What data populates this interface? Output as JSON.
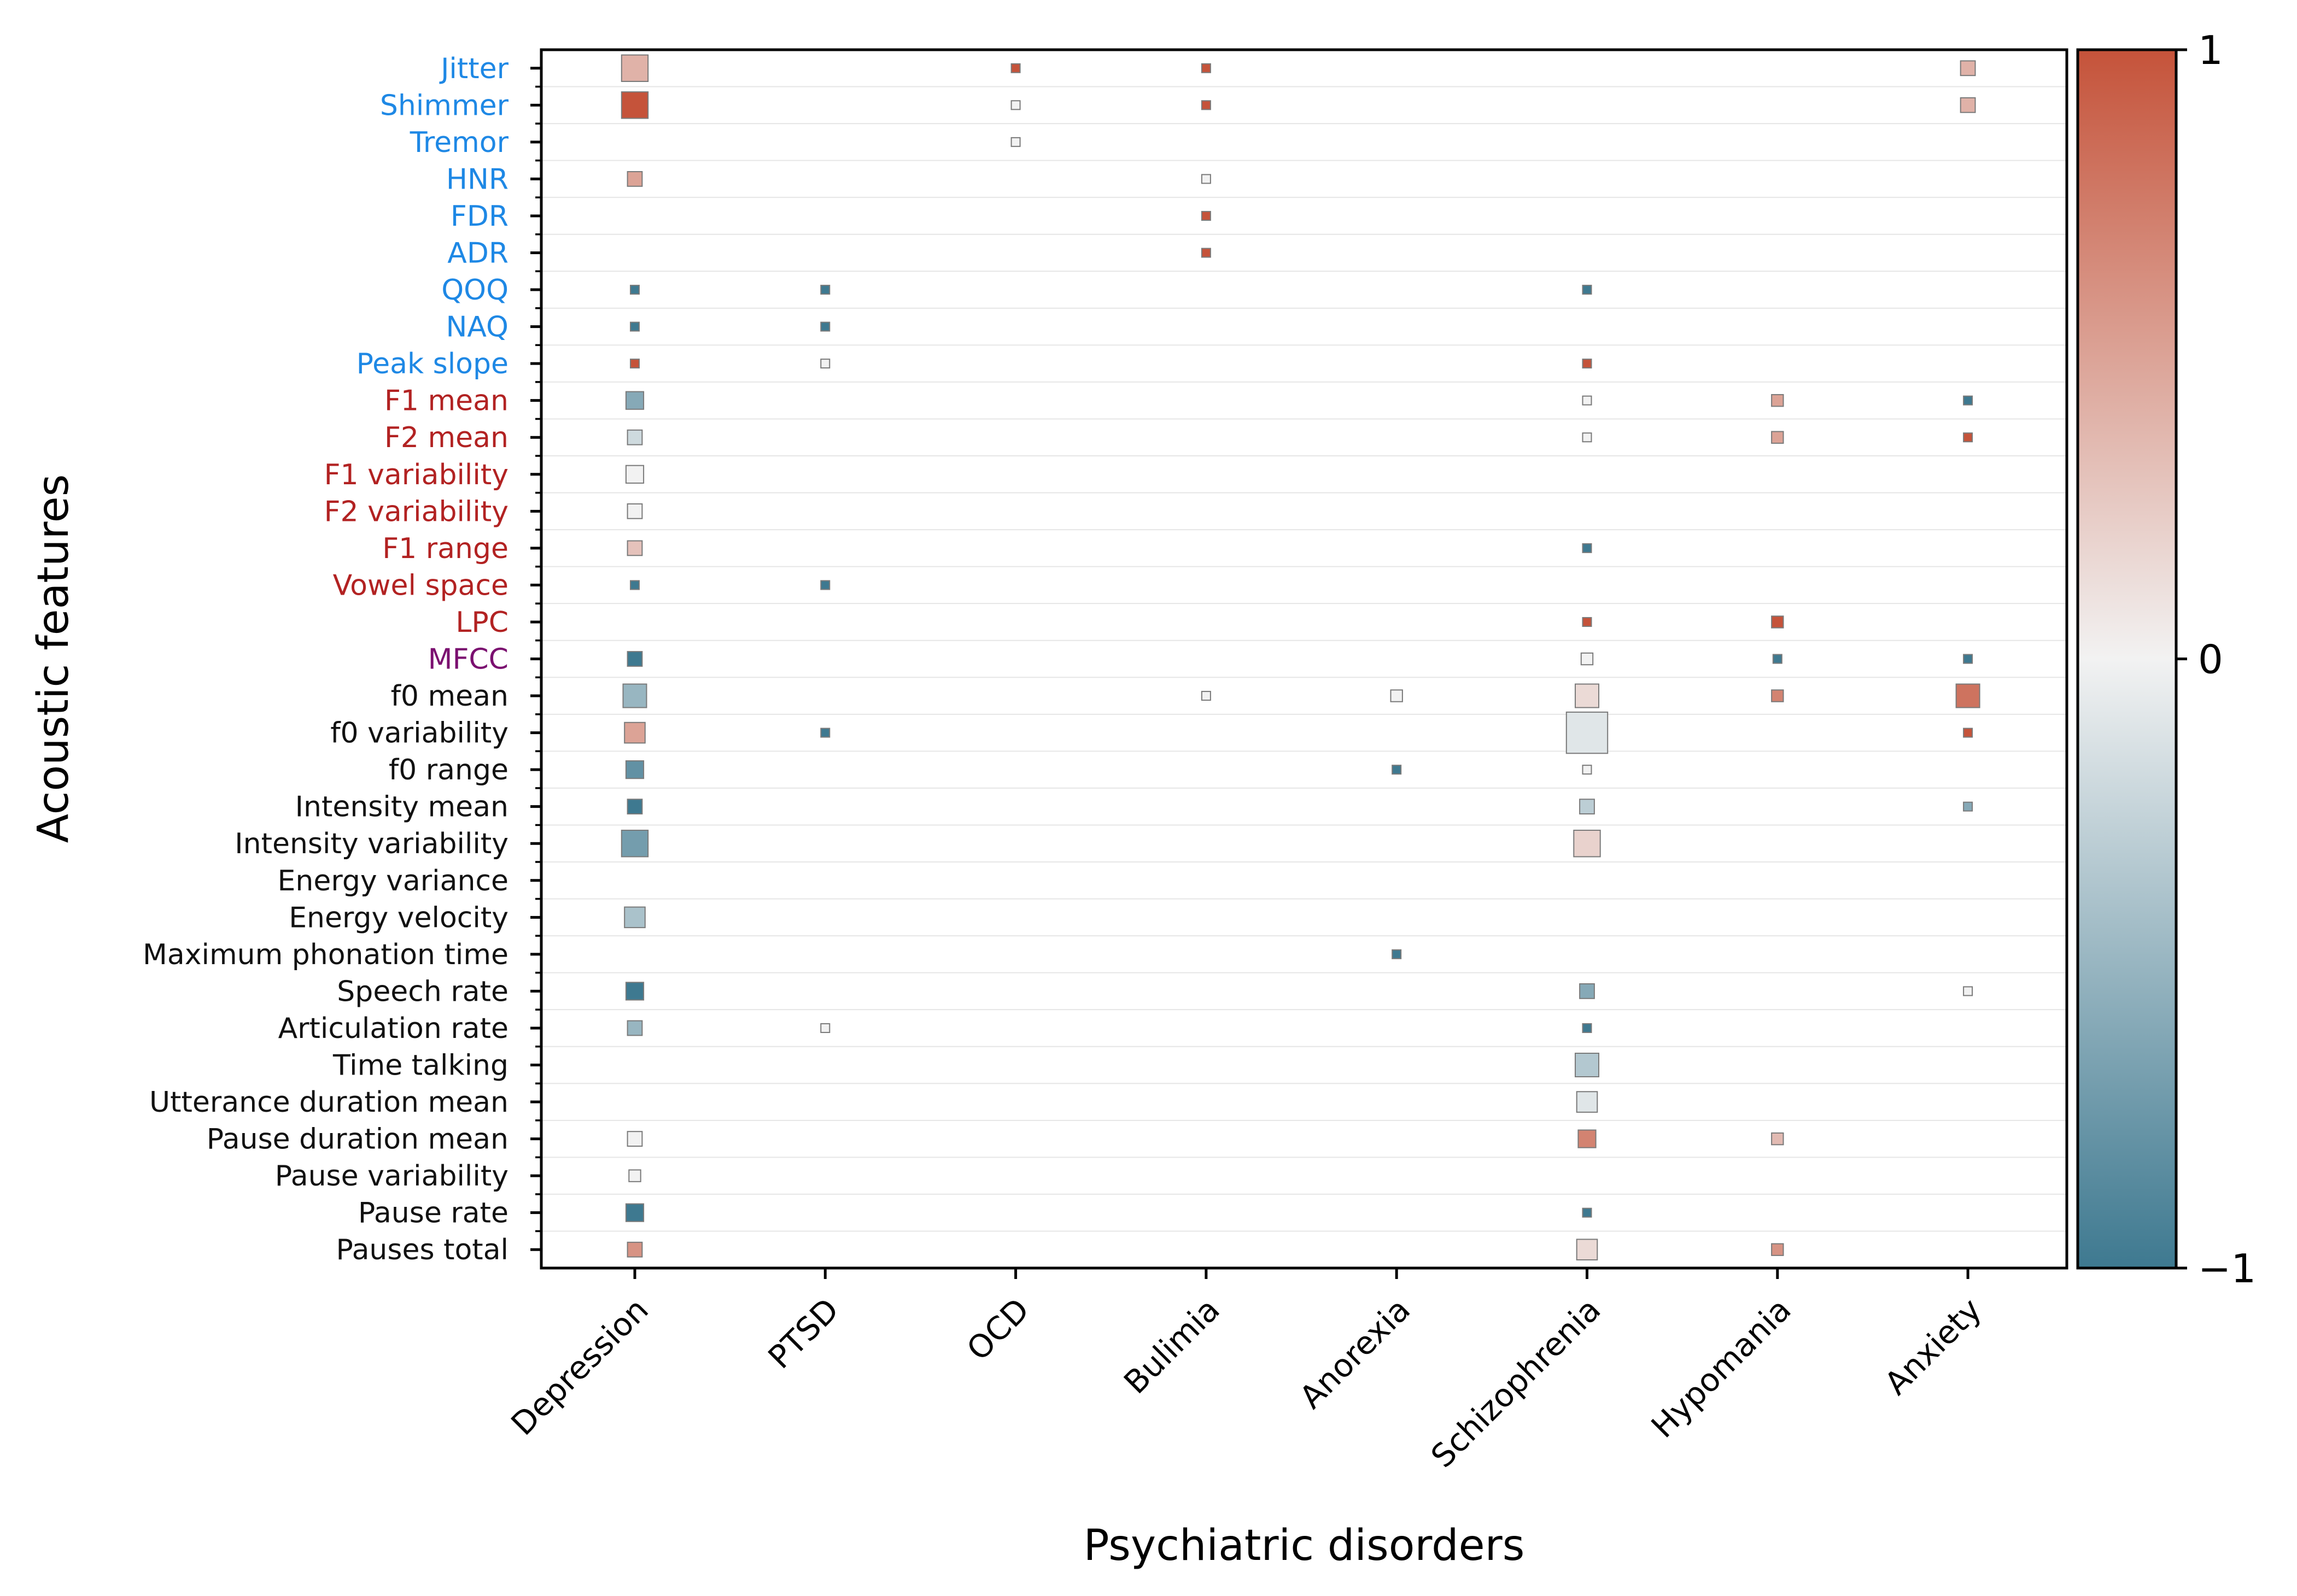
{
  "chart_data": {
    "type": "heatmap",
    "xlabel": "Psychiatric disorders",
    "ylabel": "Acoustic features",
    "categories": [
      "Depression",
      "PTSD",
      "OCD",
      "Bulimia",
      "Anorexia",
      "Schizophrenia",
      "Hypomania",
      "Anxiety"
    ],
    "features": [
      {
        "name": "Jitter",
        "group": "source"
      },
      {
        "name": "Shimmer",
        "group": "source"
      },
      {
        "name": "Tremor",
        "group": "source"
      },
      {
        "name": "HNR",
        "group": "source"
      },
      {
        "name": "FDR",
        "group": "source"
      },
      {
        "name": "ADR",
        "group": "source"
      },
      {
        "name": "QOQ",
        "group": "source"
      },
      {
        "name": "NAQ",
        "group": "source"
      },
      {
        "name": "Peak slope",
        "group": "source"
      },
      {
        "name": "F1 mean",
        "group": "filter"
      },
      {
        "name": "F2 mean",
        "group": "filter"
      },
      {
        "name": "F1 variability",
        "group": "filter"
      },
      {
        "name": "F2 variability",
        "group": "filter"
      },
      {
        "name": "F1 range",
        "group": "filter"
      },
      {
        "name": "Vowel space",
        "group": "filter"
      },
      {
        "name": "LPC",
        "group": "filter"
      },
      {
        "name": "MFCC",
        "group": "spectral"
      },
      {
        "name": "f0 mean",
        "group": "prosodic"
      },
      {
        "name": "f0 variability",
        "group": "prosodic"
      },
      {
        "name": "f0 range",
        "group": "prosodic"
      },
      {
        "name": "Intensity mean",
        "group": "prosodic"
      },
      {
        "name": "Intensity variability",
        "group": "prosodic"
      },
      {
        "name": "Energy variance",
        "group": "prosodic"
      },
      {
        "name": "Energy velocity",
        "group": "prosodic"
      },
      {
        "name": "Maximum phonation time",
        "group": "prosodic"
      },
      {
        "name": "Speech rate",
        "group": "prosodic"
      },
      {
        "name": "Articulation rate",
        "group": "prosodic"
      },
      {
        "name": "Time talking ",
        "group": "prosodic"
      },
      {
        "name": "Utterance duration mean",
        "group": "prosodic"
      },
      {
        "name": "Pause duration mean",
        "group": "prosodic"
      },
      {
        "name": "Pause variability",
        "group": "prosodic"
      },
      {
        "name": "Pause rate",
        "group": "prosodic"
      },
      {
        "name": "Pauses total",
        "group": "prosodic"
      }
    ],
    "group_colors": {
      "source": "#1e88e5",
      "filter": "#b22222",
      "spectral": "#7b1070",
      "prosodic": "#111111"
    },
    "cells": [
      {
        "feature": "Jitter",
        "disorder": "Depression",
        "value": 0.4,
        "weight": 7
      },
      {
        "feature": "Jitter",
        "disorder": "OCD",
        "value": 1.0,
        "weight": 1
      },
      {
        "feature": "Jitter",
        "disorder": "Bulimia",
        "value": 1.0,
        "weight": 1
      },
      {
        "feature": "Jitter",
        "disorder": "Anxiety",
        "value": 0.4,
        "weight": 3
      },
      {
        "feature": "Shimmer",
        "disorder": "Depression",
        "value": 1.0,
        "weight": 7
      },
      {
        "feature": "Shimmer",
        "disorder": "OCD",
        "value": 0.0,
        "weight": 1
      },
      {
        "feature": "Shimmer",
        "disorder": "Bulimia",
        "value": 1.0,
        "weight": 1
      },
      {
        "feature": "Shimmer",
        "disorder": "Anxiety",
        "value": 0.4,
        "weight": 3
      },
      {
        "feature": "Tremor",
        "disorder": "OCD",
        "value": 0.0,
        "weight": 1
      },
      {
        "feature": "HNR",
        "disorder": "Depression",
        "value": 0.5,
        "weight": 3
      },
      {
        "feature": "HNR",
        "disorder": "Bulimia",
        "value": 0.0,
        "weight": 1
      },
      {
        "feature": "FDR",
        "disorder": "Bulimia",
        "value": 1.0,
        "weight": 1
      },
      {
        "feature": "ADR",
        "disorder": "Bulimia",
        "value": 1.0,
        "weight": 1
      },
      {
        "feature": "QOQ",
        "disorder": "Depression",
        "value": -1.0,
        "weight": 1
      },
      {
        "feature": "QOQ",
        "disorder": "PTSD",
        "value": -1.0,
        "weight": 1
      },
      {
        "feature": "QOQ",
        "disorder": "Schizophrenia",
        "value": -1.0,
        "weight": 1
      },
      {
        "feature": "NAQ",
        "disorder": "Depression",
        "value": -1.0,
        "weight": 1
      },
      {
        "feature": "NAQ",
        "disorder": "PTSD",
        "value": -1.0,
        "weight": 1
      },
      {
        "feature": "Peak slope",
        "disorder": "Depression",
        "value": 1.0,
        "weight": 1
      },
      {
        "feature": "Peak slope",
        "disorder": "PTSD",
        "value": 0.0,
        "weight": 1
      },
      {
        "feature": "Peak slope",
        "disorder": "Schizophrenia",
        "value": 1.0,
        "weight": 1
      },
      {
        "feature": "F1 mean",
        "disorder": "Depression",
        "value": -0.6,
        "weight": 4
      },
      {
        "feature": "F1 mean",
        "disorder": "Schizophrenia",
        "value": 0.0,
        "weight": 1
      },
      {
        "feature": "F1 mean",
        "disorder": "Hypomania",
        "value": 0.5,
        "weight": 2
      },
      {
        "feature": "F1 mean",
        "disorder": "Anxiety",
        "value": -1.0,
        "weight": 1
      },
      {
        "feature": "F2 mean",
        "disorder": "Depression",
        "value": -0.2,
        "weight": 3
      },
      {
        "feature": "F2 mean",
        "disorder": "Schizophrenia",
        "value": 0.0,
        "weight": 1
      },
      {
        "feature": "F2 mean",
        "disorder": "Hypomania",
        "value": 0.5,
        "weight": 2
      },
      {
        "feature": "F2 mean",
        "disorder": "Anxiety",
        "value": 1.0,
        "weight": 1
      },
      {
        "feature": "F1 variability",
        "disorder": "Depression",
        "value": 0.0,
        "weight": 4
      },
      {
        "feature": "F2 variability",
        "disorder": "Depression",
        "value": 0.0,
        "weight": 3
      },
      {
        "feature": "F1 range",
        "disorder": "Depression",
        "value": 0.3,
        "weight": 3
      },
      {
        "feature": "F1 range",
        "disorder": "Schizophrenia",
        "value": -1.0,
        "weight": 1
      },
      {
        "feature": "Vowel space",
        "disorder": "Depression",
        "value": -1.0,
        "weight": 1
      },
      {
        "feature": "Vowel space",
        "disorder": "PTSD",
        "value": -1.0,
        "weight": 1
      },
      {
        "feature": "LPC",
        "disorder": "Schizophrenia",
        "value": 1.0,
        "weight": 1
      },
      {
        "feature": "LPC",
        "disorder": "Hypomania",
        "value": 1.0,
        "weight": 2
      },
      {
        "feature": "MFCC",
        "disorder": "Depression",
        "value": -1.0,
        "weight": 3
      },
      {
        "feature": "MFCC",
        "disorder": "Schizophrenia",
        "value": 0.0,
        "weight": 2
      },
      {
        "feature": "MFCC",
        "disorder": "Hypomania",
        "value": -1.0,
        "weight": 1
      },
      {
        "feature": "MFCC",
        "disorder": "Anxiety",
        "value": -1.0,
        "weight": 1
      },
      {
        "feature": "f0 mean",
        "disorder": "Depression",
        "value": -0.5,
        "weight": 6
      },
      {
        "feature": "f0 mean",
        "disorder": "Bulimia",
        "value": 0.0,
        "weight": 1
      },
      {
        "feature": "f0 mean",
        "disorder": "Anorexia",
        "value": 0.0,
        "weight": 2
      },
      {
        "feature": "f0 mean",
        "disorder": "Schizophrenia",
        "value": 0.15,
        "weight": 6
      },
      {
        "feature": "f0 mean",
        "disorder": "Hypomania",
        "value": 0.7,
        "weight": 2
      },
      {
        "feature": "f0 mean",
        "disorder": "Anxiety",
        "value": 0.8,
        "weight": 6
      },
      {
        "feature": "f0 variability",
        "disorder": "Depression",
        "value": 0.5,
        "weight": 5
      },
      {
        "feature": "f0 variability",
        "disorder": "PTSD",
        "value": -1.0,
        "weight": 1
      },
      {
        "feature": "f0 variability",
        "disorder": "Schizophrenia",
        "value": -0.1,
        "weight": 12
      },
      {
        "feature": "f0 variability",
        "disorder": "Anxiety",
        "value": 1.0,
        "weight": 1
      },
      {
        "feature": "f0 range",
        "disorder": "Depression",
        "value": -0.8,
        "weight": 4
      },
      {
        "feature": "f0 range",
        "disorder": "Anorexia",
        "value": -1.0,
        "weight": 1
      },
      {
        "feature": "f0 range",
        "disorder": "Schizophrenia",
        "value": 0.0,
        "weight": 1
      },
      {
        "feature": "Intensity mean",
        "disorder": "Depression",
        "value": -1.0,
        "weight": 3
      },
      {
        "feature": "Intensity mean",
        "disorder": "Schizophrenia",
        "value": -0.3,
        "weight": 3
      },
      {
        "feature": "Intensity mean",
        "disorder": "Anxiety",
        "value": -0.6,
        "weight": 1
      },
      {
        "feature": "Intensity variability",
        "disorder": "Depression",
        "value": -0.7,
        "weight": 7
      },
      {
        "feature": "Intensity variability",
        "disorder": "Schizophrenia",
        "value": 0.2,
        "weight": 7
      },
      {
        "feature": "Energy velocity",
        "disorder": "Depression",
        "value": -0.4,
        "weight": 5
      },
      {
        "feature": "Maximum phonation time",
        "disorder": "Anorexia",
        "value": -1.0,
        "weight": 1
      },
      {
        "feature": "Speech rate",
        "disorder": "Depression",
        "value": -1.0,
        "weight": 4
      },
      {
        "feature": "Speech rate",
        "disorder": "Schizophrenia",
        "value": -0.6,
        "weight": 3
      },
      {
        "feature": "Speech rate",
        "disorder": "Anxiety",
        "value": 0.0,
        "weight": 1
      },
      {
        "feature": "Articulation rate",
        "disorder": "Depression",
        "value": -0.5,
        "weight": 3
      },
      {
        "feature": "Articulation rate",
        "disorder": "PTSD",
        "value": 0.0,
        "weight": 1
      },
      {
        "feature": "Articulation rate",
        "disorder": "Schizophrenia",
        "value": -1.0,
        "weight": 1
      },
      {
        "feature": "Time talking ",
        "disorder": "Schizophrenia",
        "value": -0.35,
        "weight": 6
      },
      {
        "feature": "Utterance duration mean",
        "disorder": "Schizophrenia",
        "value": -0.1,
        "weight": 5
      },
      {
        "feature": "Pause duration mean",
        "disorder": "Depression",
        "value": 0.0,
        "weight": 3
      },
      {
        "feature": "Pause duration mean",
        "disorder": "Schizophrenia",
        "value": 0.7,
        "weight": 4
      },
      {
        "feature": "Pause duration mean",
        "disorder": "Hypomania",
        "value": 0.35,
        "weight": 2
      },
      {
        "feature": "Pause variability",
        "disorder": "Depression",
        "value": 0.0,
        "weight": 2
      },
      {
        "feature": "Pause rate",
        "disorder": "Depression",
        "value": -1.0,
        "weight": 4
      },
      {
        "feature": "Pause rate",
        "disorder": "Schizophrenia",
        "value": -1.0,
        "weight": 1
      },
      {
        "feature": "Pauses total",
        "disorder": "Depression",
        "value": 0.6,
        "weight": 3
      },
      {
        "feature": "Pauses total",
        "disorder": "Schizophrenia",
        "value": 0.15,
        "weight": 5
      },
      {
        "feature": "Pauses total",
        "disorder": "Hypomania",
        "value": 0.6,
        "weight": 2
      }
    ],
    "colorbar": {
      "ticks": [
        1,
        0,
        -1
      ],
      "tick_labels": [
        "1",
        "0",
        "−1"
      ],
      "colors": {
        "negative": "#3e7990",
        "zero": "#f2f2f2",
        "positive": "#c5533a"
      }
    },
    "grid": true
  }
}
